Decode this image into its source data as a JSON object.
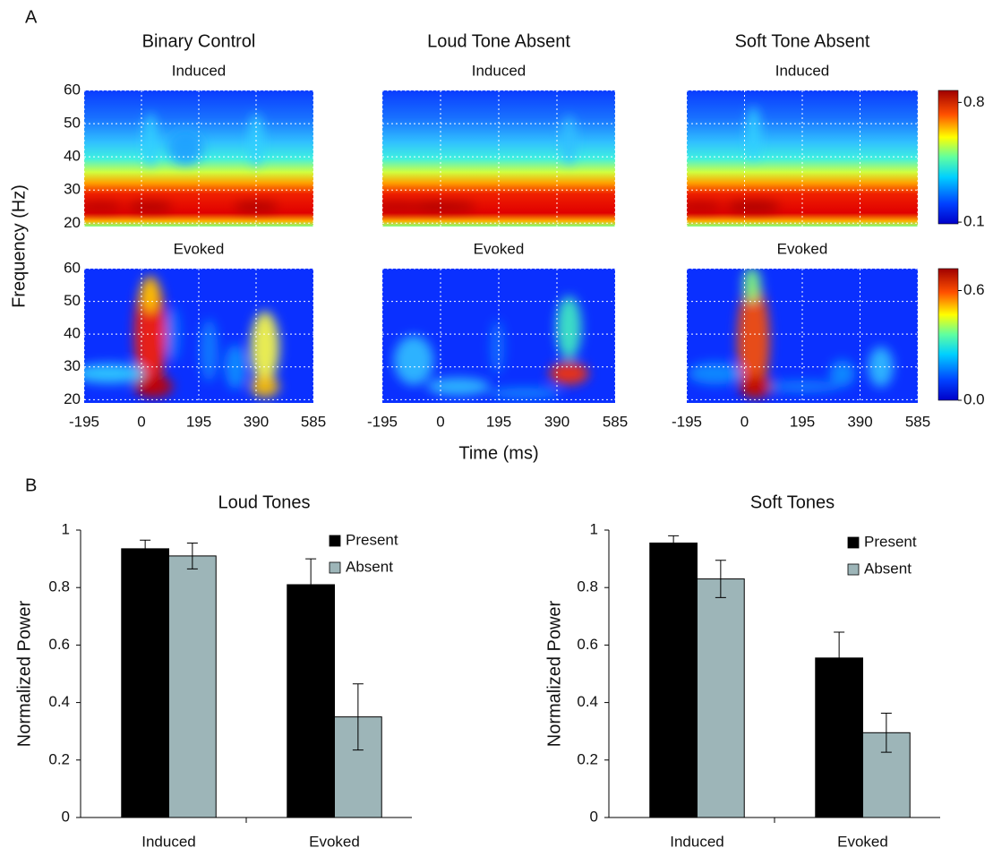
{
  "panel_labels": [
    "A",
    "B"
  ],
  "chart_data": [
    {
      "type": "heatmap",
      "title": "Binary Control",
      "subtitle": "Induced",
      "ylabel": "Frequency (Hz)",
      "xlim": [
        -195,
        585
      ],
      "ylim": [
        19,
        60
      ],
      "yticks": [
        20,
        30,
        40,
        50,
        60
      ],
      "grid": true
    },
    {
      "type": "heatmap",
      "title": "Loud Tone Absent",
      "subtitle": "Induced",
      "xlim": [
        -195,
        585
      ],
      "ylim": [
        19,
        60
      ],
      "grid": true
    },
    {
      "type": "heatmap",
      "title": "Soft Tone Absent",
      "subtitle": "Induced",
      "xlim": [
        -195,
        585
      ],
      "ylim": [
        19,
        60
      ],
      "grid": true,
      "colorbar": {
        "lim": [
          0.09,
          0.87
        ],
        "ticks": [
          0.1,
          0.8
        ]
      }
    },
    {
      "type": "heatmap",
      "subtitle": "Evoked",
      "xlim": [
        -195,
        585
      ],
      "ylim": [
        19,
        60
      ],
      "yticks": [
        20,
        30,
        40,
        50,
        60
      ],
      "xticks": [
        -195,
        0,
        195,
        390,
        585
      ],
      "grid": true
    },
    {
      "type": "heatmap",
      "subtitle": "Evoked",
      "xlabel": "Time (ms)",
      "xlim": [
        -195,
        585
      ],
      "ylim": [
        19,
        60
      ],
      "xticks": [
        -195,
        0,
        195,
        390,
        585
      ],
      "grid": true
    },
    {
      "type": "heatmap",
      "subtitle": "Evoked",
      "xlim": [
        -195,
        585
      ],
      "ylim": [
        19,
        60
      ],
      "xticks": [
        -195,
        0,
        195,
        390,
        585
      ],
      "grid": true,
      "colorbar": {
        "lim": [
          0,
          0.72
        ],
        "ticks": [
          {
            "value": 0,
            "label": "0.0"
          },
          0.6
        ]
      }
    },
    {
      "type": "bar",
      "title": "Loud Tones",
      "ylabel": "Normalized Power",
      "categories": [
        "Induced",
        "Evoked"
      ],
      "ylim": [
        0,
        1
      ],
      "yticks": [
        0,
        0.2,
        0.4,
        0.6,
        0.8,
        1
      ],
      "legend": "upper right",
      "series": [
        {
          "name": "Present",
          "color": "#000000",
          "values": [
            0.935,
            0.81
          ],
          "errors": [
            0.03,
            0.09
          ]
        },
        {
          "name": "Absent",
          "color": "#9db5b8",
          "values": [
            0.91,
            0.35
          ],
          "errors": [
            0.045,
            0.115
          ]
        }
      ]
    },
    {
      "type": "bar",
      "title": "Soft Tones",
      "ylabel": "Normalized Power",
      "categories": [
        "Induced",
        "Evoked"
      ],
      "ylim": [
        0,
        1
      ],
      "yticks": [
        0,
        0.2,
        0.4,
        0.6,
        0.8,
        1
      ],
      "legend": "upper right",
      "series": [
        {
          "name": "Present",
          "color": "#000000",
          "values": [
            0.955,
            0.555
          ],
          "errors": [
            0.025,
            0.09
          ]
        },
        {
          "name": "Absent",
          "color": "#9db5b8",
          "values": [
            0.83,
            0.295
          ],
          "errors": [
            0.065,
            0.068
          ]
        }
      ]
    }
  ]
}
